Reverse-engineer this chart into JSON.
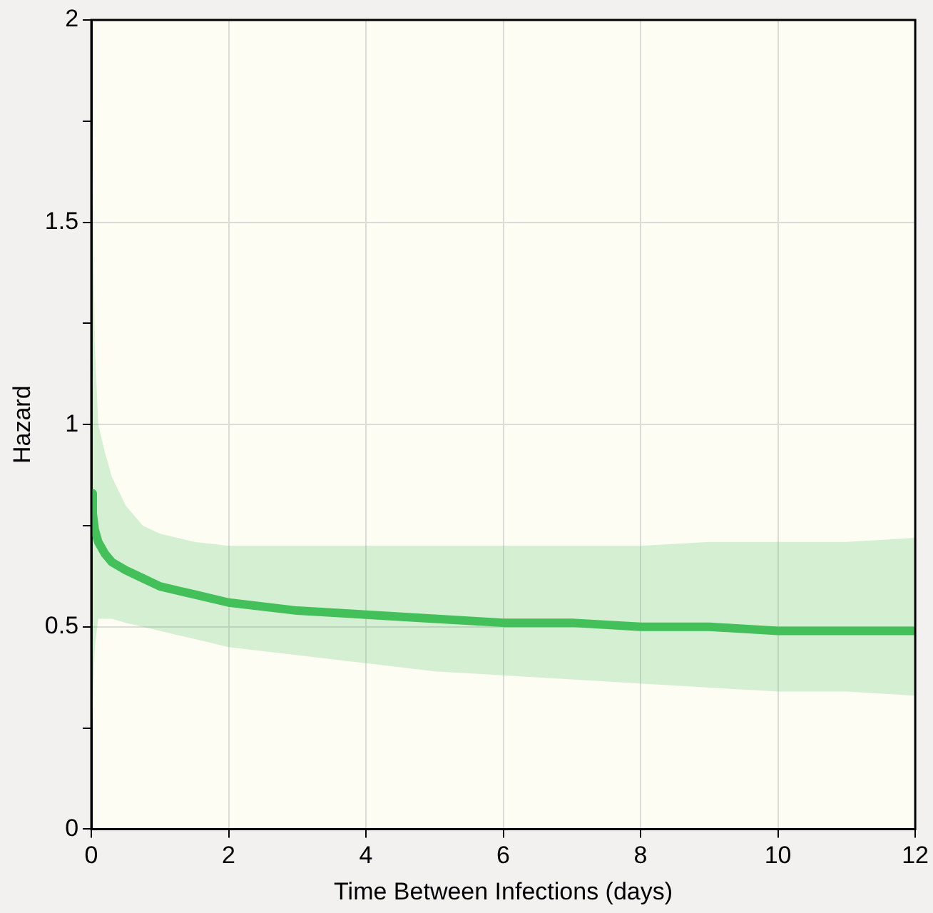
{
  "chart_data": {
    "type": "line",
    "xlabel": "Time Between Infections (days)",
    "ylabel": "Hazard",
    "x": [
      0,
      0.02,
      0.05,
      0.1,
      0.2,
      0.3,
      0.5,
      0.75,
      1,
      1.5,
      2,
      3,
      4,
      5,
      6,
      7,
      8,
      9,
      10,
      11,
      12
    ],
    "series": [
      {
        "color": "#44c05a",
        "values": [
          0.83,
          0.78,
          0.74,
          0.71,
          0.68,
          0.66,
          0.64,
          0.62,
          0.6,
          0.58,
          0.56,
          0.54,
          0.53,
          0.52,
          0.51,
          0.51,
          0.5,
          0.5,
          0.49,
          0.49,
          0.49
        ],
        "lower": [
          0.2,
          0.3,
          0.45,
          0.52,
          0.52,
          0.52,
          0.51,
          0.5,
          0.49,
          0.47,
          0.45,
          0.43,
          0.41,
          0.39,
          0.38,
          0.37,
          0.36,
          0.35,
          0.34,
          0.34,
          0.33
        ],
        "upper": [
          2,
          1.6,
          1.2,
          1,
          0.93,
          0.87,
          0.8,
          0.75,
          0.73,
          0.71,
          0.7,
          0.7,
          0.7,
          0.7,
          0.7,
          0.7,
          0.7,
          0.71,
          0.71,
          0.71,
          0.72
        ]
      }
    ],
    "xlim": [
      0,
      12
    ],
    "xticks": [
      0,
      2,
      4,
      6,
      8,
      10,
      12
    ],
    "ylim": [
      0,
      2
    ],
    "yticks": [
      0,
      {
        "value": 0.25,
        "label": null
      },
      0.5,
      {
        "value": 0.75,
        "label": null
      },
      1,
      {
        "value": 1.25,
        "label": null
      },
      1.5,
      {
        "value": 1.75,
        "label": null
      },
      2
    ],
    "grid": true,
    "legend": false,
    "marker": "none",
    "line_style": "solid"
  }
}
